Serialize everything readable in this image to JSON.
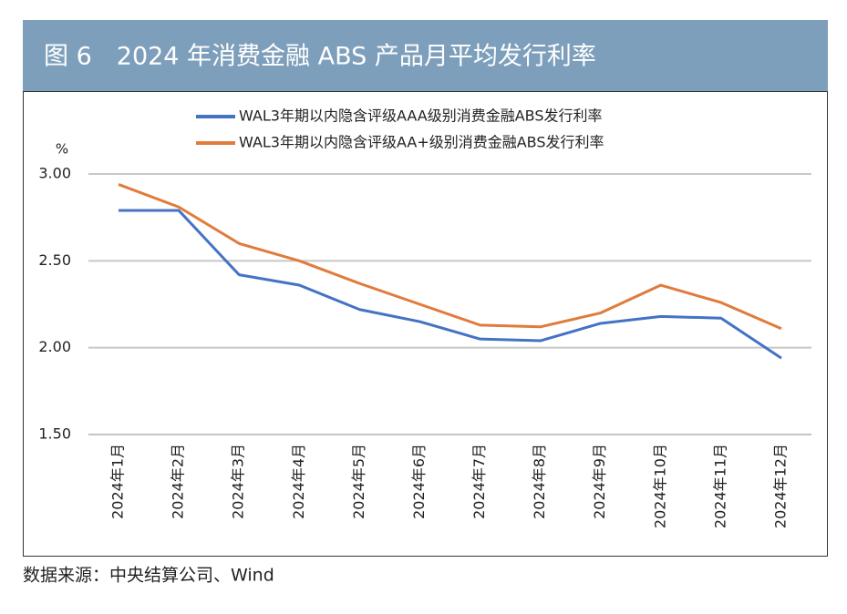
{
  "header": {
    "title": "图 6　2024 年消费金融 ABS 产品月平均发行利率"
  },
  "chart_data": {
    "type": "line",
    "y_unit": "%",
    "categories": [
      "2024年1月",
      "2024年2月",
      "2024年3月",
      "2024年4月",
      "2024年5月",
      "2024年6月",
      "2024年7月",
      "2024年8月",
      "2024年9月",
      "2024年10月",
      "2024年11月",
      "2024年12月"
    ],
    "series": [
      {
        "name": "WAL3年期以内隐含评级AAA级别消费金融ABS发行利率",
        "color": "#4472c4",
        "values": [
          2.79,
          2.79,
          2.42,
          2.36,
          2.22,
          2.15,
          2.05,
          2.04,
          2.14,
          2.18,
          2.17,
          1.94
        ]
      },
      {
        "name": "WAL3年期以内隐含评级AA+级别消费金融ABS发行利率",
        "color": "#e07b3c",
        "values": [
          2.94,
          2.81,
          2.6,
          2.5,
          2.37,
          2.25,
          2.13,
          2.12,
          2.2,
          2.36,
          2.26,
          2.11
        ]
      }
    ],
    "ylim": [
      1.5,
      3.0
    ],
    "yticks": [
      {
        "value": 1.5,
        "label": "1.50"
      },
      {
        "value": 2.0,
        "label": "2.00"
      },
      {
        "value": 2.5,
        "label": "2.50"
      },
      {
        "value": 3.0,
        "label": "3.00"
      }
    ],
    "grid": true,
    "legend": "top"
  },
  "footer": {
    "source": "数据来源：中央结算公司、Wind"
  }
}
